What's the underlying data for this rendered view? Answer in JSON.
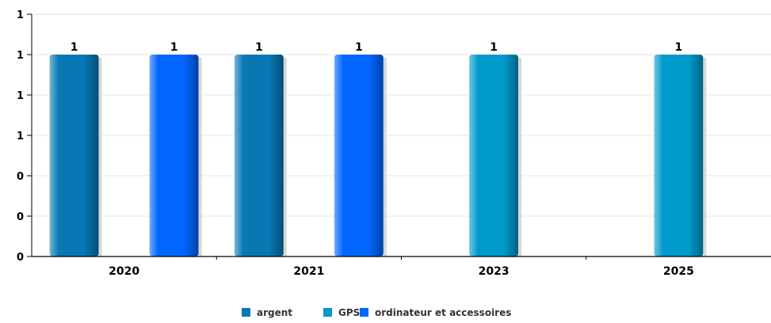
{
  "chart_data": {
    "type": "bar",
    "categories": [
      "2020",
      "2021",
      "2023",
      "2025"
    ],
    "series": [
      {
        "name": "argent",
        "color": "#0778b4",
        "values": [
          1,
          1,
          null,
          null
        ]
      },
      {
        "name": "GPS",
        "color": "#0099cc",
        "values": [
          null,
          null,
          1,
          1
        ]
      },
      {
        "name": "ordinateur et accessoires",
        "color": "#0066ff",
        "values": [
          1,
          1,
          null,
          null
        ]
      }
    ],
    "y_tick_labels": [
      "0",
      "0",
      "0",
      "1",
      "1",
      "1",
      "1"
    ],
    "ylim": [
      0,
      1.2
    ],
    "grid": true,
    "legend_position": "bottom-center",
    "show_value_labels": true
  }
}
